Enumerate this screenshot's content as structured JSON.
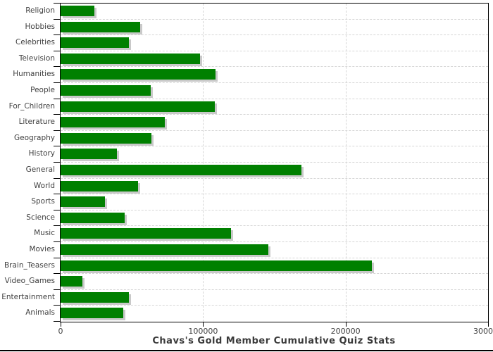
{
  "chart_data": {
    "type": "bar",
    "orientation": "horizontal",
    "title": "Chavs's Gold Member Cumulative Quiz Stats",
    "categories": [
      "Religion",
      "Hobbies",
      "Celebrities",
      "Television",
      "Humanities",
      "People",
      "For_Children",
      "Literature",
      "Geography",
      "History",
      "General",
      "World",
      "Sports",
      "Science",
      "Music",
      "Movies",
      "Brain_Teasers",
      "Video_Games",
      "Entertainment",
      "Animals"
    ],
    "values": [
      23500,
      56000,
      48000,
      98000,
      108500,
      63500,
      108000,
      73000,
      64000,
      39500,
      169000,
      54500,
      31000,
      45000,
      119500,
      146000,
      218500,
      15500,
      48000,
      44000
    ],
    "xlabel": "",
    "ylabel": "",
    "xlim": [
      0,
      300000
    ],
    "x_ticks": [
      0,
      100000,
      200000,
      300000
    ],
    "x_tick_labels": [
      "0",
      "100000",
      "200000",
      "300000"
    ],
    "grid": "dashed",
    "legend": "none",
    "bar_color": "#008000",
    "shadow_color": "#c9c9c9",
    "grid_color": "#d6d6d6",
    "frame_color": "#000000",
    "label_color": "#404040"
  }
}
